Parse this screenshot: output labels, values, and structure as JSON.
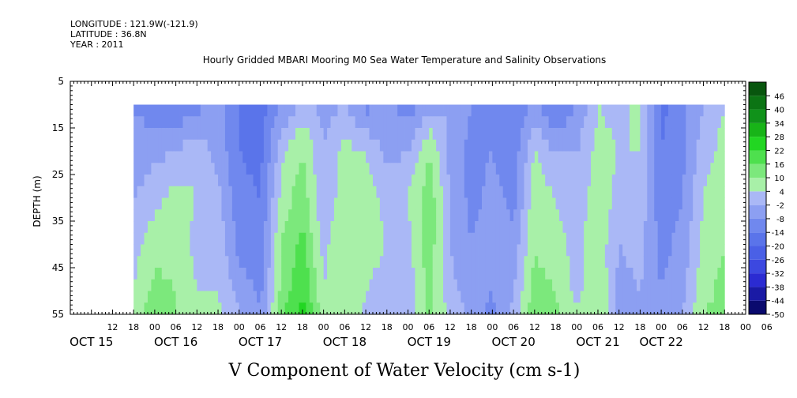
{
  "header": {
    "longitude": "LONGITUDE : 121.9W(-121.9)",
    "latitude": "LATITUDE : 36.8N",
    "year": "YEAR : 2011",
    "title": "Hourly Gridded MBARI Mooring M0 Sea Water Temperature and Salinity Observations"
  },
  "chart_data": {
    "type": "heatmap",
    "title": "Hourly Gridded MBARI Mooring M0 Sea Water Temperature and Salinity Observations",
    "xlabel": "V Component of Water Velocity (cm s-1)",
    "ylabel": "DEPTH (m)",
    "units": "cm s-1",
    "x_range_hours": [
      0,
      192
    ],
    "x_start_label": "OCT 15 00",
    "data_start_hour": 18,
    "data_end_hour": 186,
    "ylim": [
      5,
      55
    ],
    "y_inverted": true,
    "data_depth_range": [
      10,
      55
    ],
    "y_ticks": [
      5,
      15,
      25,
      35,
      45,
      55
    ],
    "hour_tick_labels": [
      "12",
      "18",
      "00",
      "06",
      "12",
      "18",
      "00",
      "06",
      "12",
      "18",
      "00",
      "06",
      "12",
      "18",
      "00",
      "06",
      "12",
      "18",
      "00",
      "06",
      "12",
      "18",
      "00",
      "06",
      "12",
      "18",
      "00",
      "06",
      "12",
      "18",
      "00",
      "06"
    ],
    "day_labels": [
      "OCT 15",
      "OCT 16",
      "OCT 17",
      "OCT 18",
      "OCT 19",
      "OCT 20",
      "OCT 21",
      "OCT 22"
    ],
    "colorbar": {
      "levels": [
        -50,
        -44,
        -38,
        -32,
        -26,
        -20,
        -14,
        -8,
        -2,
        4,
        10,
        16,
        22,
        28,
        34,
        40,
        46
      ],
      "range": [
        -50,
        52
      ],
      "negative_colors": [
        "#0a0a6e",
        "#1a1aa5",
        "#2b2bd2",
        "#3c48e0",
        "#4a60e6",
        "#5a74ea",
        "#7088ee",
        "#8c9ff2",
        "#aab8f6"
      ],
      "positive_colors": [
        "#a8f0a8",
        "#7ce87c",
        "#4ee04e",
        "#22d622",
        "#18b418",
        "#10921a",
        "#0c7414",
        "#08560e"
      ]
    },
    "profile_depths": [
      10,
      20,
      30,
      40,
      50,
      55
    ],
    "profile_times": [
      18,
      24,
      30,
      36,
      42,
      48,
      54,
      60,
      66,
      72,
      78,
      84,
      90,
      96,
      102,
      108,
      114,
      120,
      126,
      132,
      138,
      144,
      150,
      156,
      162,
      168,
      174,
      180,
      186
    ],
    "v_velocity": [
      [
        -8,
        -12,
        -14,
        -10,
        -6,
        -14,
        -18,
        -8,
        0,
        -4,
        -2,
        -10,
        -6,
        -12,
        -4,
        -2,
        -8,
        -12,
        -14,
        -6,
        -16,
        -8,
        4,
        2,
        6,
        -16,
        -10,
        -2,
        4
      ],
      [
        -6,
        -4,
        -2,
        2,
        -4,
        -14,
        -16,
        2,
        10,
        -2,
        6,
        4,
        -4,
        -2,
        10,
        -4,
        -10,
        -8,
        -12,
        4,
        -2,
        -2,
        6,
        4,
        4,
        -14,
        -10,
        2,
        6
      ],
      [
        -2,
        2,
        6,
        4,
        0,
        -12,
        -14,
        6,
        14,
        -2,
        8,
        8,
        2,
        4,
        14,
        -2,
        -10,
        -6,
        -10,
        8,
        4,
        0,
        8,
        2,
        2,
        -12,
        -8,
        4,
        8
      ],
      [
        2,
        8,
        8,
        2,
        2,
        -10,
        -12,
        10,
        18,
        2,
        10,
        6,
        4,
        2,
        14,
        -2,
        -8,
        -4,
        -6,
        10,
        6,
        2,
        8,
        -2,
        0,
        -10,
        -6,
        6,
        10
      ],
      [
        4,
        12,
        10,
        4,
        4,
        -4,
        -10,
        12,
        22,
        4,
        10,
        4,
        2,
        0,
        12,
        0,
        -6,
        -8,
        -2,
        12,
        10,
        2,
        10,
        -4,
        -2,
        -8,
        -4,
        8,
        12
      ],
      [
        6,
        14,
        10,
        6,
        6,
        -2,
        -8,
        14,
        24,
        6,
        10,
        2,
        0,
        -2,
        12,
        2,
        -4,
        -10,
        0,
        14,
        12,
        4,
        10,
        -4,
        -2,
        -6,
        -2,
        10,
        12
      ]
    ]
  }
}
